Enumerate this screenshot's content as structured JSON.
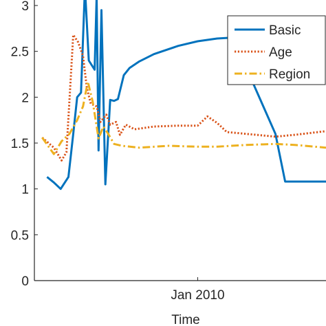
{
  "chart_data": {
    "type": "line",
    "title": "",
    "xlabel": "Time",
    "ylabel": "",
    "ylim": [
      0,
      3
    ],
    "yticks": [
      0,
      0.5,
      1,
      1.5,
      2,
      2.5,
      3
    ],
    "ytick_labels": [
      "0",
      "0.5",
      "1",
      "1.5",
      "2",
      "2.5",
      "3"
    ],
    "xticks": [
      {
        "x": 2010.0,
        "label": "Jan 2010"
      }
    ],
    "xlim": [
      2008.32,
      2011.32
    ],
    "legend_position": "top-right",
    "grid": false,
    "series": [
      {
        "name": "Basic",
        "color": "#0072BD",
        "style": "solid",
        "points": [
          [
            2008.45,
            1.13
          ],
          [
            2008.52,
            1.07
          ],
          [
            2008.59,
            1.0
          ],
          [
            2008.67,
            1.13
          ],
          [
            2008.72,
            1.6
          ],
          [
            2008.76,
            2.0
          ],
          [
            2008.8,
            2.05
          ],
          [
            2008.84,
            3.2
          ],
          [
            2008.88,
            2.4
          ],
          [
            2008.94,
            2.3
          ],
          [
            2008.96,
            3.1
          ],
          [
            2008.98,
            1.42
          ],
          [
            2009.01,
            2.95
          ],
          [
            2009.05,
            1.05
          ],
          [
            2009.1,
            1.97
          ],
          [
            2009.14,
            1.96
          ],
          [
            2009.18,
            1.98
          ],
          [
            2009.24,
            2.24
          ],
          [
            2009.3,
            2.32
          ],
          [
            2009.4,
            2.39
          ],
          [
            2009.55,
            2.47
          ],
          [
            2009.8,
            2.56
          ],
          [
            2010.0,
            2.61
          ],
          [
            2010.2,
            2.64
          ],
          [
            2010.35,
            2.65
          ],
          [
            2010.55,
            2.2
          ],
          [
            2010.8,
            1.6
          ],
          [
            2010.9,
            1.08
          ],
          [
            2011.32,
            1.08
          ]
        ]
      },
      {
        "name": "Age",
        "color": "#D95319",
        "style": "dotted",
        "points": [
          [
            2008.4,
            1.56
          ],
          [
            2008.52,
            1.45
          ],
          [
            2008.6,
            1.31
          ],
          [
            2008.65,
            1.4
          ],
          [
            2008.72,
            2.68
          ],
          [
            2008.77,
            2.6
          ],
          [
            2008.82,
            2.45
          ],
          [
            2008.86,
            2.1
          ],
          [
            2008.9,
            1.93
          ],
          [
            2008.96,
            1.9
          ],
          [
            2009.0,
            1.73
          ],
          [
            2009.06,
            1.81
          ],
          [
            2009.1,
            1.7
          ],
          [
            2009.16,
            1.73
          ],
          [
            2009.2,
            1.59
          ],
          [
            2009.26,
            1.7
          ],
          [
            2009.35,
            1.65
          ],
          [
            2009.55,
            1.68
          ],
          [
            2009.8,
            1.69
          ],
          [
            2010.0,
            1.69
          ],
          [
            2010.1,
            1.79
          ],
          [
            2010.2,
            1.72
          ],
          [
            2010.3,
            1.62
          ],
          [
            2010.6,
            1.59
          ],
          [
            2010.8,
            1.57
          ],
          [
            2011.0,
            1.59
          ],
          [
            2011.32,
            1.63
          ]
        ]
      },
      {
        "name": "Region",
        "color": "#EDB120",
        "style": "dash-dot",
        "points": [
          [
            2008.4,
            1.56
          ],
          [
            2008.52,
            1.38
          ],
          [
            2008.6,
            1.52
          ],
          [
            2008.68,
            1.6
          ],
          [
            2008.76,
            1.75
          ],
          [
            2008.82,
            1.9
          ],
          [
            2008.87,
            2.17
          ],
          [
            2008.92,
            1.95
          ],
          [
            2008.98,
            1.55
          ],
          [
            2009.03,
            1.68
          ],
          [
            2009.08,
            1.6
          ],
          [
            2009.14,
            1.49
          ],
          [
            2009.22,
            1.47
          ],
          [
            2009.4,
            1.45
          ],
          [
            2009.7,
            1.47
          ],
          [
            2010.0,
            1.46
          ],
          [
            2010.2,
            1.46
          ],
          [
            2010.5,
            1.48
          ],
          [
            2010.8,
            1.49
          ],
          [
            2011.0,
            1.48
          ],
          [
            2011.32,
            1.45
          ]
        ]
      }
    ]
  }
}
